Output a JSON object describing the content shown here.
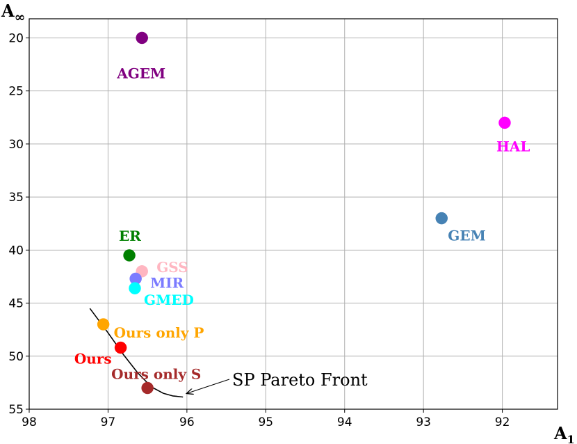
{
  "chart_data": {
    "type": "scatter",
    "xlabel_main": "A",
    "xlabel_sub": "1",
    "ylabel_main": "A",
    "ylabel_sub": "∞",
    "xlim": [
      98,
      91.3
    ],
    "ylim": [
      55,
      18.2
    ],
    "x_inverted": true,
    "y_inverted": true,
    "grid": true,
    "x_ticks": [
      98,
      97,
      96,
      95,
      94,
      93,
      92
    ],
    "y_ticks": [
      20,
      25,
      30,
      35,
      40,
      45,
      50,
      55
    ],
    "points": [
      {
        "label": "AGEM",
        "x": 96.57,
        "y": 20.0,
        "color": "#800080"
      },
      {
        "label": "HAL",
        "x": 91.97,
        "y": 28.0,
        "color": "#ff00ff"
      },
      {
        "label": "GEM",
        "x": 92.77,
        "y": 37.0,
        "color": "#4682b4"
      },
      {
        "label": "ER",
        "x": 96.73,
        "y": 40.5,
        "color": "#008000"
      },
      {
        "label": "GSS",
        "x": 96.57,
        "y": 42.0,
        "color": "#ffb6c1"
      },
      {
        "label": "MIR",
        "x": 96.65,
        "y": 42.7,
        "color": "#7b7bff"
      },
      {
        "label": "GMED",
        "x": 96.66,
        "y": 43.6,
        "color": "#00ffff"
      },
      {
        "label": "Ours only P",
        "x": 97.06,
        "y": 47.0,
        "color": "#ffa500"
      },
      {
        "label": "Ours",
        "x": 96.84,
        "y": 49.2,
        "color": "#ff0000"
      },
      {
        "label": "Ours only S",
        "x": 96.5,
        "y": 53.0,
        "color": "#a52a2a"
      }
    ],
    "pareto_front": {
      "label": "SP Pareto Front",
      "x": [
        97.23,
        97.0,
        96.8,
        96.62,
        96.45,
        96.3,
        96.18,
        96.05
      ],
      "y": [
        45.5,
        47.8,
        49.9,
        51.6,
        52.9,
        53.5,
        53.75,
        53.85
      ]
    }
  }
}
